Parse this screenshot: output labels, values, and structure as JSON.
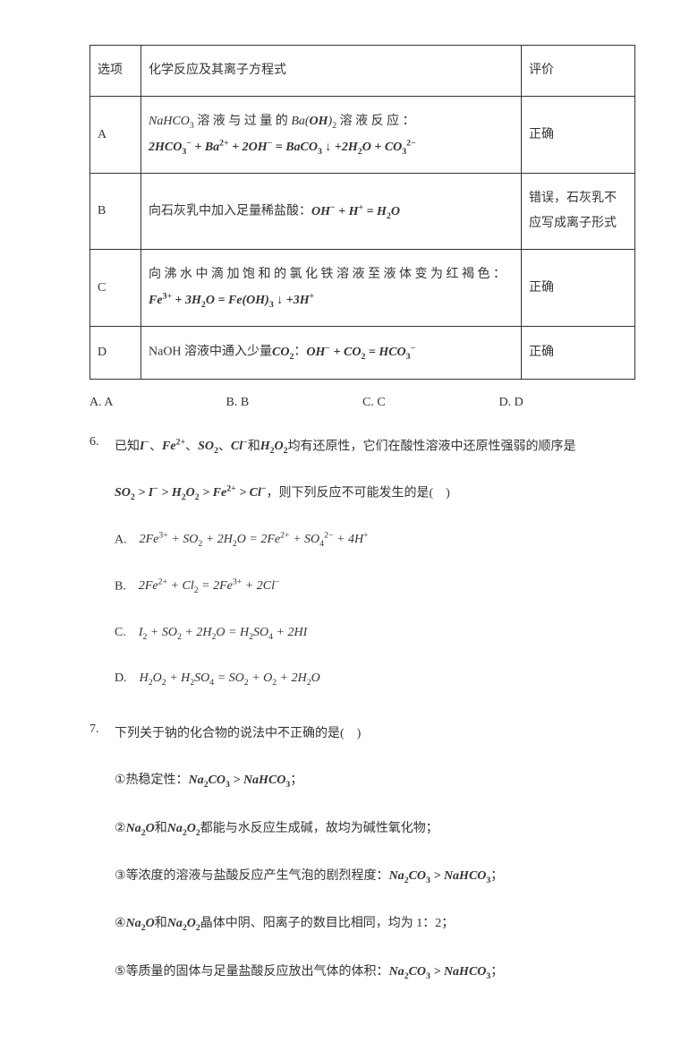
{
  "table": {
    "header": {
      "opt": "选项",
      "reaction": "化学反应及其离子方程式",
      "eval": "评价"
    },
    "rows": [
      {
        "opt": "A",
        "text1": "NaHCO₃ 溶 液 与 过 量 的 Ba(OH)₂ 溶 液 反 应 ：",
        "text2": "2HCO₃⁻ + Ba²⁺ + 2OH⁻ = BaCO₃↓ + 2H₂O + CO₃²⁻",
        "eval": "正确"
      },
      {
        "opt": "B",
        "text1": "向石灰乳中加入足量稀盐酸：OH⁻ + H⁺ = H₂O",
        "eval": "错误，石灰乳不应写成离子形式"
      },
      {
        "opt": "C",
        "text1": "向沸水中滴加饱和的氯化铁溶液至液体变为红褐色：",
        "text2": "Fe³⁺ + 3H₂O = Fe(OH)₃↓ + 3H⁺",
        "eval": "正确"
      },
      {
        "opt": "D",
        "text1": "NaOH 溶液中通入少量CO₂：OH⁻ + CO₂ = HCO₃⁻",
        "eval": "正确"
      }
    ]
  },
  "opts5": {
    "a": "A. A",
    "b": "B. B",
    "c": "C. C",
    "d": "D. D"
  },
  "q6": {
    "num": "6.",
    "stem1": "已知I⁻、Fe²⁺、SO₂、Cl⁻和H₂O₂均有还原性，它们在酸性溶液中还原性强弱的顺序是",
    "stem2": "SO₂ > I⁻ > H₂O₂ > Fe²⁺ > Cl⁻，则下列反应不可能发生的是(　)",
    "a": "A.　2Fe³⁺ + SO₂ + 2H₂O = 2Fe²⁺ + SO₄²⁻ + 4H⁺",
    "b": "B.　2Fe²⁺ + Cl₂ = 2Fe³⁺ + 2Cl⁻",
    "c": "C.　I₂ + SO₂ + 2H₂O = H₂SO₄ + 2HI",
    "d": "D.　H₂O₂ + H₂SO₄ = SO₂ + O₂ + 2H₂O"
  },
  "q7": {
    "num": "7.",
    "stem": "下列关于钠的化合物的说法中不正确的是(　)",
    "l1": "①热稳定性：Na₂CO₃ > NaHCO₃；",
    "l2": "②Na₂O和Na₂O₂都能与水反应生成碱，故均为碱性氧化物；",
    "l3": "③等浓度的溶液与盐酸反应产生气泡的剧烈程度：Na₂CO₃ > NaHCO₃；",
    "l4": "④Na₂O和Na₂O₂晶体中阴、阳离子的数目比相同，均为 1：2；",
    "l5": "⑤等质量的固体与足量盐酸反应放出气体的体积：Na₂CO₃ > NaHCO₃；"
  }
}
